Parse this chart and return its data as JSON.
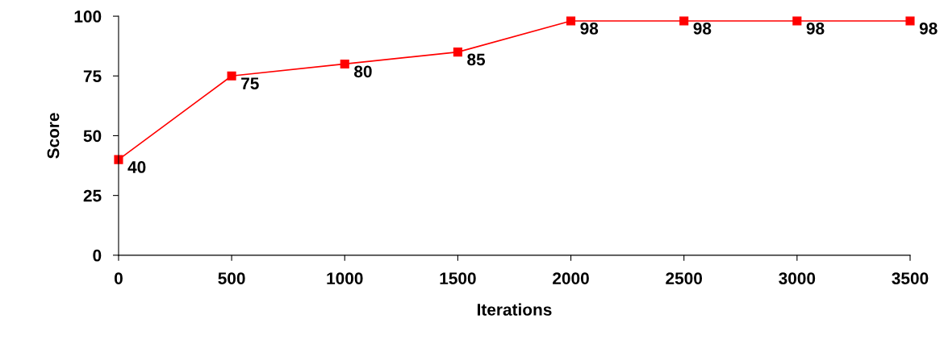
{
  "chart_data": {
    "type": "line",
    "xlabel": "Iterations",
    "ylabel": "Score",
    "x": [
      0,
      500,
      1000,
      1500,
      2000,
      2500,
      3000,
      3500
    ],
    "series": [
      {
        "color": "#ff0000",
        "values": [
          40,
          75,
          80,
          85,
          98,
          98,
          98,
          98
        ]
      }
    ],
    "xlim": [
      0,
      3500
    ],
    "xticks": [
      0,
      500,
      1000,
      1500,
      2000,
      2500,
      3000,
      3500
    ],
    "ylim": [
      0,
      100
    ],
    "yticks": [
      0,
      25,
      50,
      75,
      100
    ],
    "marker": "square",
    "line_style": "solid",
    "data_labels": true,
    "grid": false,
    "legend": false
  }
}
